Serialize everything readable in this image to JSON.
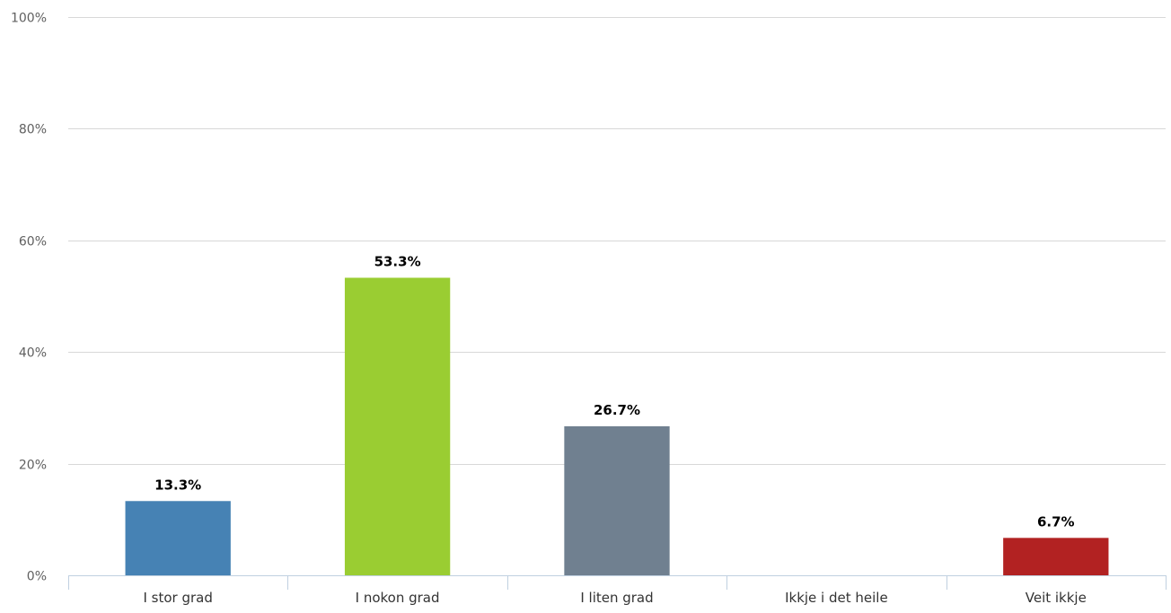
{
  "chart_data": {
    "type": "bar",
    "title": "",
    "xlabel": "",
    "ylabel": "",
    "categories": [
      "I stor grad",
      "I nokon grad",
      "I liten grad",
      "Ikkje i det heile",
      "Veit ikkje"
    ],
    "values": [
      13.3,
      53.3,
      26.7,
      0,
      6.7
    ],
    "data_labels": [
      "13.3%",
      "53.3%",
      "26.7%",
      "",
      "6.7%"
    ],
    "colors": [
      "#4682b4",
      "#9acd32",
      "#708090",
      "#708090",
      "#b22222"
    ],
    "ylim": [
      0,
      100
    ],
    "yticks": [
      0,
      20,
      40,
      60,
      80,
      100
    ],
    "ytick_labels": [
      "0%",
      "20%",
      "40%",
      "60%",
      "80%",
      "100%"
    ],
    "grid": true,
    "legend": "none"
  }
}
